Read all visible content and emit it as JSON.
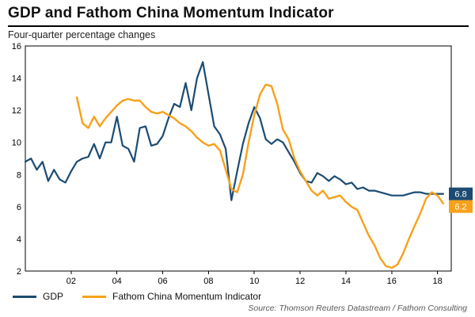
{
  "source": "Source: Thomson Reuters Datastream / Fathom Consulting",
  "colors": {
    "gdp_navy": "#1b4b72",
    "cmi_orange": "#f7a11a",
    "axis": "#000000"
  },
  "chart_data": {
    "type": "line",
    "title": "GDP and Fathom China Momentum Indicator",
    "subtitle": "Four-quarter percentage changes",
    "xlabel": "",
    "ylabel": "",
    "xlim": [
      2000,
      2018.6
    ],
    "ylim": [
      2,
      16
    ],
    "grid": false,
    "legend_position": "bottom-left",
    "y_ticks": [
      2,
      4,
      6,
      8,
      10,
      12,
      14,
      16
    ],
    "x_ticks": [
      {
        "value": 2002,
        "label": "02"
      },
      {
        "value": 2004,
        "label": "04"
      },
      {
        "value": 2006,
        "label": "06"
      },
      {
        "value": 2008,
        "label": "08"
      },
      {
        "value": 2010,
        "label": "10"
      },
      {
        "value": 2012,
        "label": "12"
      },
      {
        "value": 2014,
        "label": "14"
      },
      {
        "value": 2016,
        "label": "16"
      },
      {
        "value": 2018,
        "label": "18"
      }
    ],
    "series": [
      {
        "name": "GDP",
        "color": "#1b4b72",
        "x_start": 2000.0,
        "x_step": 0.25,
        "values": [
          8.8,
          9.0,
          8.3,
          8.8,
          7.6,
          8.3,
          7.7,
          7.5,
          8.2,
          8.8,
          9.0,
          9.1,
          9.9,
          9.0,
          10.0,
          10.0,
          11.6,
          9.8,
          9.6,
          8.8,
          10.9,
          11.0,
          9.8,
          9.9,
          10.4,
          11.5,
          12.4,
          12.2,
          13.7,
          12.0,
          14.0,
          15.0,
          13.0,
          11.0,
          10.5,
          9.6,
          6.4,
          8.2,
          9.9,
          11.2,
          12.2,
          11.5,
          10.2,
          9.9,
          10.2,
          10.0,
          9.4,
          8.8,
          8.1,
          7.6,
          7.5,
          8.1,
          7.9,
          7.6,
          7.9,
          7.7,
          7.4,
          7.5,
          7.1,
          7.2,
          7.0,
          7.0,
          6.9,
          6.8,
          6.7,
          6.7,
          6.7,
          6.8,
          6.9,
          6.9,
          6.8,
          6.8,
          6.8,
          6.8
        ]
      },
      {
        "name": "Fathom China Momentum Indicator",
        "color": "#f7a11a",
        "x_start": 2002.25,
        "x_step": 0.25,
        "values": [
          12.8,
          11.2,
          10.9,
          11.6,
          11.0,
          11.5,
          11.9,
          12.3,
          12.6,
          12.7,
          12.6,
          12.6,
          12.2,
          11.9,
          11.8,
          11.9,
          11.7,
          11.5,
          11.2,
          11.0,
          10.7,
          10.3,
          10.0,
          9.8,
          9.9,
          9.5,
          8.3,
          7.1,
          6.9,
          8.0,
          10.0,
          11.7,
          13.0,
          13.6,
          13.5,
          12.4,
          10.8,
          10.2,
          9.0,
          8.2,
          7.6,
          7.0,
          6.7,
          7.0,
          6.5,
          6.6,
          6.7,
          6.3,
          6.0,
          5.8,
          5.0,
          4.2,
          3.6,
          2.8,
          2.3,
          2.2,
          2.4,
          3.1,
          4.0,
          4.8,
          5.6,
          6.5,
          6.9,
          6.7,
          6.2
        ]
      }
    ],
    "end_labels": [
      {
        "text": "6.8",
        "value": 6.8,
        "color": "#1b4b72"
      },
      {
        "text": "6.2",
        "value": 6.2,
        "color": "#f7a11a"
      }
    ]
  }
}
